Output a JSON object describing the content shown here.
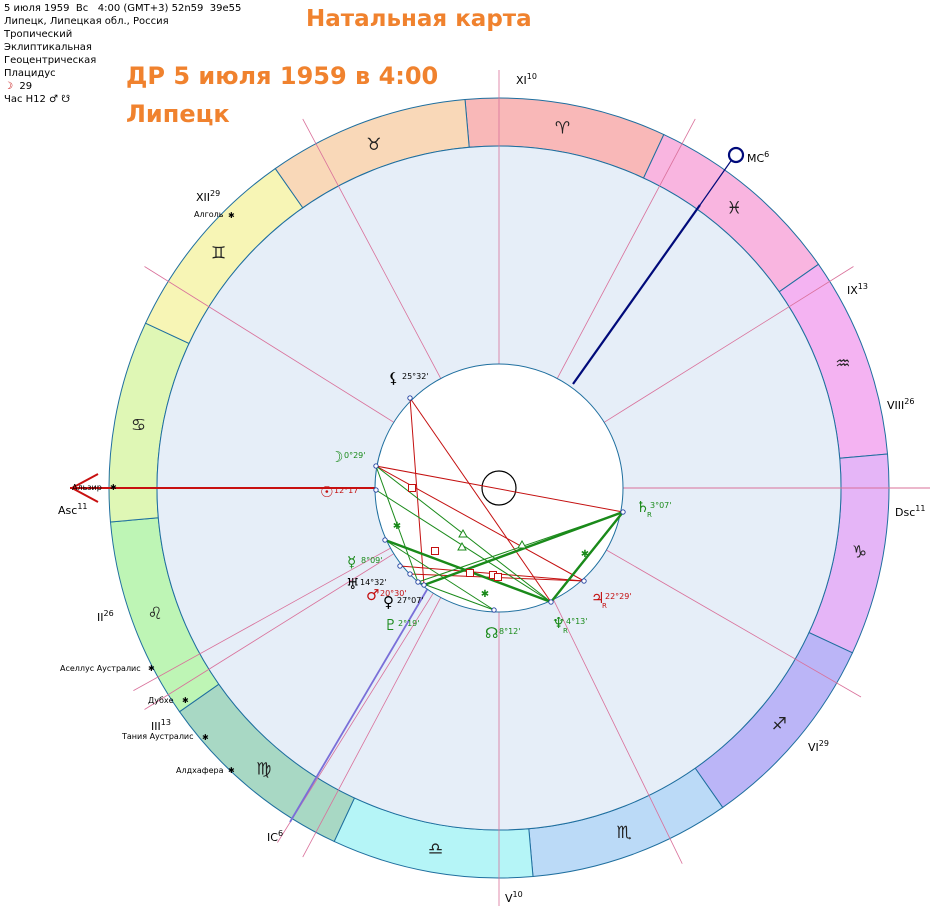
{
  "info": {
    "line1": "5 июля 1959  Вс   4:00 (GMT+3) 52n59  39e55",
    "line2": "Липецк, Липецкая обл., Россия",
    "line3": "Тропический",
    "line4": "Эклиптикальная",
    "line5": "Геоцентрическая",
    "line6": "Плацидус",
    "moon_symbol": "☽",
    "moon_text": "29",
    "hour_text": "Час H12 ♂ ☋"
  },
  "header": {
    "title": "Натальная карта",
    "birth": "ДР 5 июля 1959 в 4:00",
    "place": "Липецк"
  },
  "colors": {
    "ring_stroke": "#1f6f9f",
    "field": "#e6eef8",
    "cusp": "#d9709a",
    "axis": "#c81010",
    "mc_axis": "#000a7a",
    "ic_axis": "#7a6fd8",
    "aspect_red": "#c41010",
    "aspect_green": "#1a8a1a"
  },
  "chart_data": {
    "type": "natal-chart",
    "signs": [
      {
        "glyph": "♈",
        "name": "aries",
        "color": "#f9b8b8"
      },
      {
        "glyph": "♓",
        "name": "pisces",
        "color": "#f9b5e0"
      },
      {
        "glyph": "♒",
        "name": "aquarius",
        "color": "#f4b3f2"
      },
      {
        "glyph": "♑",
        "name": "capricorn",
        "color": "#e5b5f7"
      },
      {
        "glyph": "♐",
        "name": "sagittarius",
        "color": "#bbb5f7"
      },
      {
        "glyph": "♏",
        "name": "scorpio",
        "color": "#bbdaf7"
      },
      {
        "glyph": "♎",
        "name": "libra",
        "color": "#b5f5f7"
      },
      {
        "glyph": "♍",
        "name": "virgo",
        "color": "#a8d8c4"
      },
      {
        "glyph": "♌",
        "name": "leo",
        "color": "#bef5b5"
      },
      {
        "glyph": "♋",
        "name": "cancer",
        "color": "#dff7b5"
      },
      {
        "glyph": "♊",
        "name": "gemini",
        "color": "#f7f5b5"
      },
      {
        "glyph": "♉",
        "name": "taurus",
        "color": "#f9d8b8"
      }
    ],
    "house_labels": [
      {
        "id": "asc",
        "label": "Asc",
        "sup": "11"
      },
      {
        "id": "ii",
        "label": "II",
        "sup": "26"
      },
      {
        "id": "iii",
        "label": "III",
        "sup": "13"
      },
      {
        "id": "ic",
        "label": "IC",
        "sup": "6"
      },
      {
        "id": "v",
        "label": "V",
        "sup": "10"
      },
      {
        "id": "vi",
        "label": "VI",
        "sup": "29"
      },
      {
        "id": "dsc",
        "label": "Dsc",
        "sup": "11"
      },
      {
        "id": "viii",
        "label": "VIII",
        "sup": "26"
      },
      {
        "id": "ix",
        "label": "IX",
        "sup": "13"
      },
      {
        "id": "mc",
        "label": "MC",
        "sup": "6"
      },
      {
        "id": "xi",
        "label": "XI",
        "sup": "10"
      },
      {
        "id": "xii",
        "label": "XII",
        "sup": "29"
      }
    ],
    "stars": [
      {
        "name": "Алголь"
      },
      {
        "name": "Альзир"
      },
      {
        "name": "Аселлус Аустралис"
      },
      {
        "name": "Дубхе"
      },
      {
        "name": "Тания Аустралис"
      },
      {
        "name": "Алдхафера"
      }
    ],
    "planets": [
      {
        "id": "lilith",
        "glyph": "⚸",
        "degree": "25°32'",
        "retro": "",
        "color": "#000000"
      },
      {
        "id": "moon",
        "glyph": "☽",
        "degree": "0°29'",
        "retro": "",
        "color": "#1a8a1a"
      },
      {
        "id": "sun",
        "glyph": "☉",
        "degree": "12°17'",
        "retro": "",
        "color": "#c41010"
      },
      {
        "id": "mercury",
        "glyph": "☿",
        "degree": "8°09'",
        "retro": "",
        "color": "#1a8a1a"
      },
      {
        "id": "uranus",
        "glyph": "♅",
        "degree": "14°32'",
        "retro": "",
        "color": "#000000"
      },
      {
        "id": "mars",
        "glyph": "♂",
        "degree": "20°30'",
        "retro": "",
        "color": "#c41010"
      },
      {
        "id": "venus",
        "glyph": "♀",
        "degree": "27°07'",
        "retro": "",
        "color": "#000000"
      },
      {
        "id": "pluto",
        "glyph": "♇",
        "degree": "2°19'",
        "retro": "",
        "color": "#1a8a1a"
      },
      {
        "id": "node",
        "glyph": "☊",
        "degree": "8°12'",
        "retro": "",
        "color": "#1a8a1a"
      },
      {
        "id": "neptune",
        "glyph": "♆",
        "degree": "4°13'",
        "retro": "R",
        "color": "#1a8a1a"
      },
      {
        "id": "jupiter",
        "glyph": "♃",
        "degree": "22°29'",
        "retro": "R",
        "color": "#c41010"
      },
      {
        "id": "saturn",
        "glyph": "♄",
        "degree": "3°07'",
        "retro": "R",
        "color": "#1a8a1a"
      }
    ]
  }
}
